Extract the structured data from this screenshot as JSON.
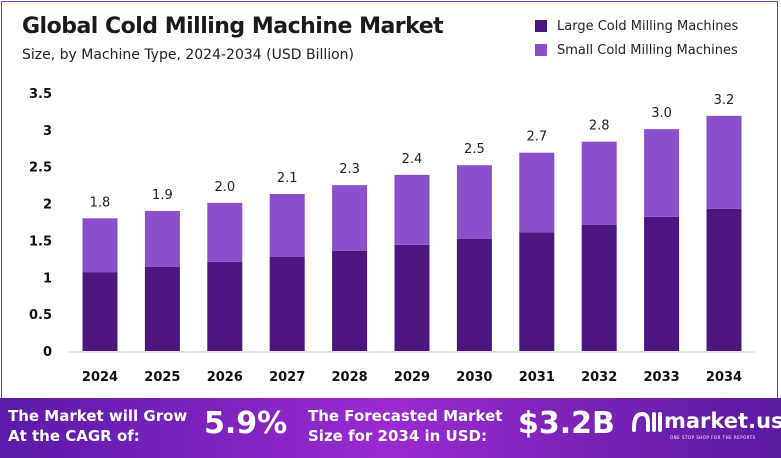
{
  "chart_data": {
    "type": "bar",
    "stacked": true,
    "title": "Global Cold Milling Machine Market",
    "subtitle": "Size, by Machine Type, 2024-2034 (USD Billion)",
    "categories": [
      "2024",
      "2025",
      "2026",
      "2027",
      "2028",
      "2029",
      "2030",
      "2031",
      "2032",
      "2033",
      "2034"
    ],
    "series": [
      {
        "name": "Large Cold Milling Machines",
        "color": "#4b1680",
        "values": [
          1.07,
          1.14,
          1.21,
          1.28,
          1.36,
          1.44,
          1.52,
          1.61,
          1.71,
          1.82,
          1.93
        ]
      },
      {
        "name": "Small Cold Milling Machines",
        "color": "#8b4fcc",
        "values": [
          0.73,
          0.76,
          0.8,
          0.85,
          0.89,
          0.95,
          1.0,
          1.08,
          1.13,
          1.19,
          1.26
        ]
      }
    ],
    "total_labels": [
      "1.8",
      "1.9",
      "2.0",
      "2.1",
      "2.3",
      "2.4",
      "2.5",
      "2.7",
      "2.8",
      "3.0",
      "3.2"
    ],
    "yticks": [
      "0",
      "0.5",
      "1",
      "1.5",
      "2",
      "2.5",
      "3",
      "3.5"
    ],
    "ylim": [
      0,
      3.5
    ],
    "grid": false,
    "legend": "top-right"
  },
  "banner": {
    "cagr_label_1": "The Market will Grow",
    "cagr_label_2": "At the CAGR of:",
    "cagr_value": "5.9%",
    "forecast_label_1": "The Forecasted Market",
    "forecast_label_2": "Size for 2034 in USD:",
    "forecast_value": "$3.2B",
    "logo_name": "market.us",
    "logo_tagline": "ONE STOP SHOP FOR THE REPORTS"
  }
}
